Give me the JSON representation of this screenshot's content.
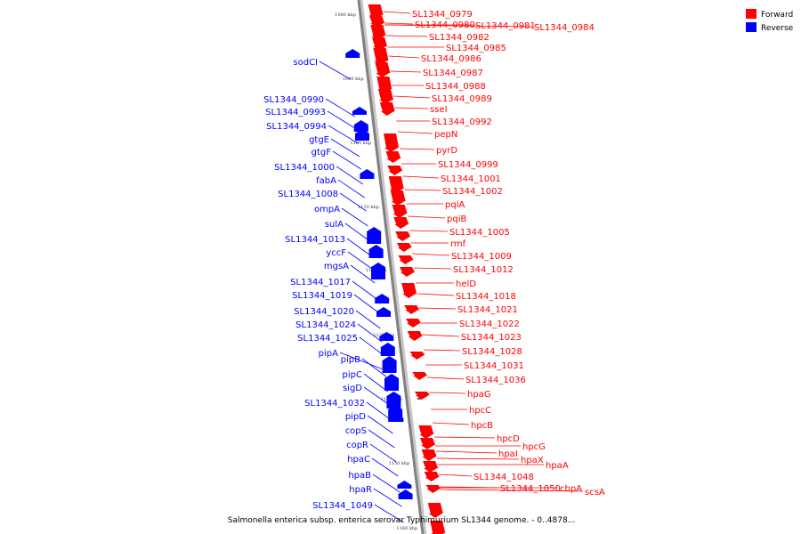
{
  "title": "Salmonella enterica subsp. enterica serovar Typhimurium SL1344 genome. - 0..4878...",
  "legend": [
    {
      "label": "Forward",
      "color": "#ff0000"
    },
    {
      "label": "Reverse",
      "color": "#0000ff"
    }
  ],
  "colors": {
    "forward": "#ff0000",
    "reverse": "#0000ff",
    "backbone": "#808080"
  },
  "scale_ticks": [
    "1080 kbp",
    "1090 kbp",
    "1100 kbp",
    "1110 kbp",
    "1120 kbp",
    "1130 kbp",
    "1140 kbp",
    "1150 kbp",
    "1160 kbp"
  ],
  "forward_genes": [
    "SL1344_0979",
    "SL1344_0980",
    "SL1344_0981",
    "SL1344_0984",
    "SL1344_0982",
    "SL1344_0985",
    "SL1344_0986",
    "SL1344_0987",
    "SL1344_0988",
    "SL1344_0989",
    "sseI",
    "SL1344_0992",
    "pepN",
    "pyrD",
    "SL1344_0999",
    "SL1344_1001",
    "SL1344_1002",
    "pqiA",
    "pqiB",
    "SL1344_1005",
    "rmf",
    "SL1344_1009",
    "SL1344_1012",
    "helD",
    "SL1344_1018",
    "SL1344_1021",
    "SL1344_1022",
    "SL1344_1023",
    "SL1344_1028",
    "SL1344_1031",
    "SL1344_1036",
    "hpaG",
    "hpcC",
    "hpcB",
    "hpcD",
    "hpcG",
    "hpaI",
    "hpaX",
    "hpaA",
    "SL1344_1048",
    "SL1344_1050",
    "cbpA",
    "scsA"
  ],
  "reverse_genes": [
    "sodCI",
    "SL1344_0990",
    "SL1344_0993",
    "SL1344_0994",
    "gtgE",
    "gtgF",
    "SL1344_1000",
    "fabA",
    "SL1344_1008",
    "ompA",
    "sulA",
    "SL1344_1013",
    "yccF",
    "mgsA",
    "SL1344_1017",
    "SL1344_1019",
    "SL1344_1020",
    "SL1344_1024",
    "SL1344_1025",
    "pipA",
    "pipB",
    "pipC",
    "sigD",
    "SL1344_1032",
    "pipD",
    "copS",
    "copR",
    "hpaC",
    "hpaB",
    "hpaR",
    "SL1344_1049"
  ]
}
